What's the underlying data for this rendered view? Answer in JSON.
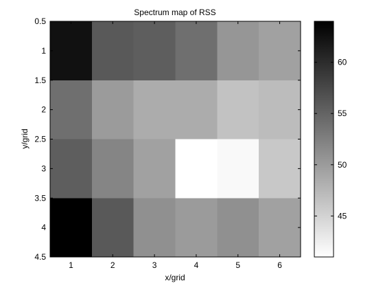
{
  "chart_data": {
    "type": "heatmap",
    "title": "Spectrum map of RSS",
    "xlabel": "x/grid",
    "ylabel": "y/grid",
    "x": [
      1,
      2,
      3,
      4,
      5,
      6
    ],
    "y": [
      1,
      2,
      3,
      4
    ],
    "xlim": [
      0.5,
      6.5
    ],
    "ylim": [
      0.5,
      4.5
    ],
    "y_axis_reversed": true,
    "x_ticks": [
      "1",
      "2",
      "3",
      "4",
      "5",
      "6"
    ],
    "y_ticks": [
      "0.5",
      "1",
      "1.5",
      "2",
      "2.5",
      "3",
      "3.5",
      "4",
      "4.5"
    ],
    "values": [
      [
        62.5,
        56.0,
        55.5,
        54.0,
        50.5,
        49.5
      ],
      [
        54.0,
        50.0,
        48.5,
        48.5,
        46.5,
        47.0
      ],
      [
        55.5,
        52.0,
        49.5,
        41.0,
        41.5,
        46.0
      ],
      [
        64.0,
        56.0,
        51.0,
        50.0,
        51.0,
        49.5
      ]
    ],
    "colormap": "gray-reversed",
    "colorbar": {
      "min": 41,
      "max": 64,
      "ticks": [
        45,
        50,
        55,
        60
      ],
      "tick_labels": [
        "45",
        "50",
        "55",
        "60"
      ],
      "low_color": "#ffffff",
      "high_color": "#000000"
    },
    "grid": false
  }
}
